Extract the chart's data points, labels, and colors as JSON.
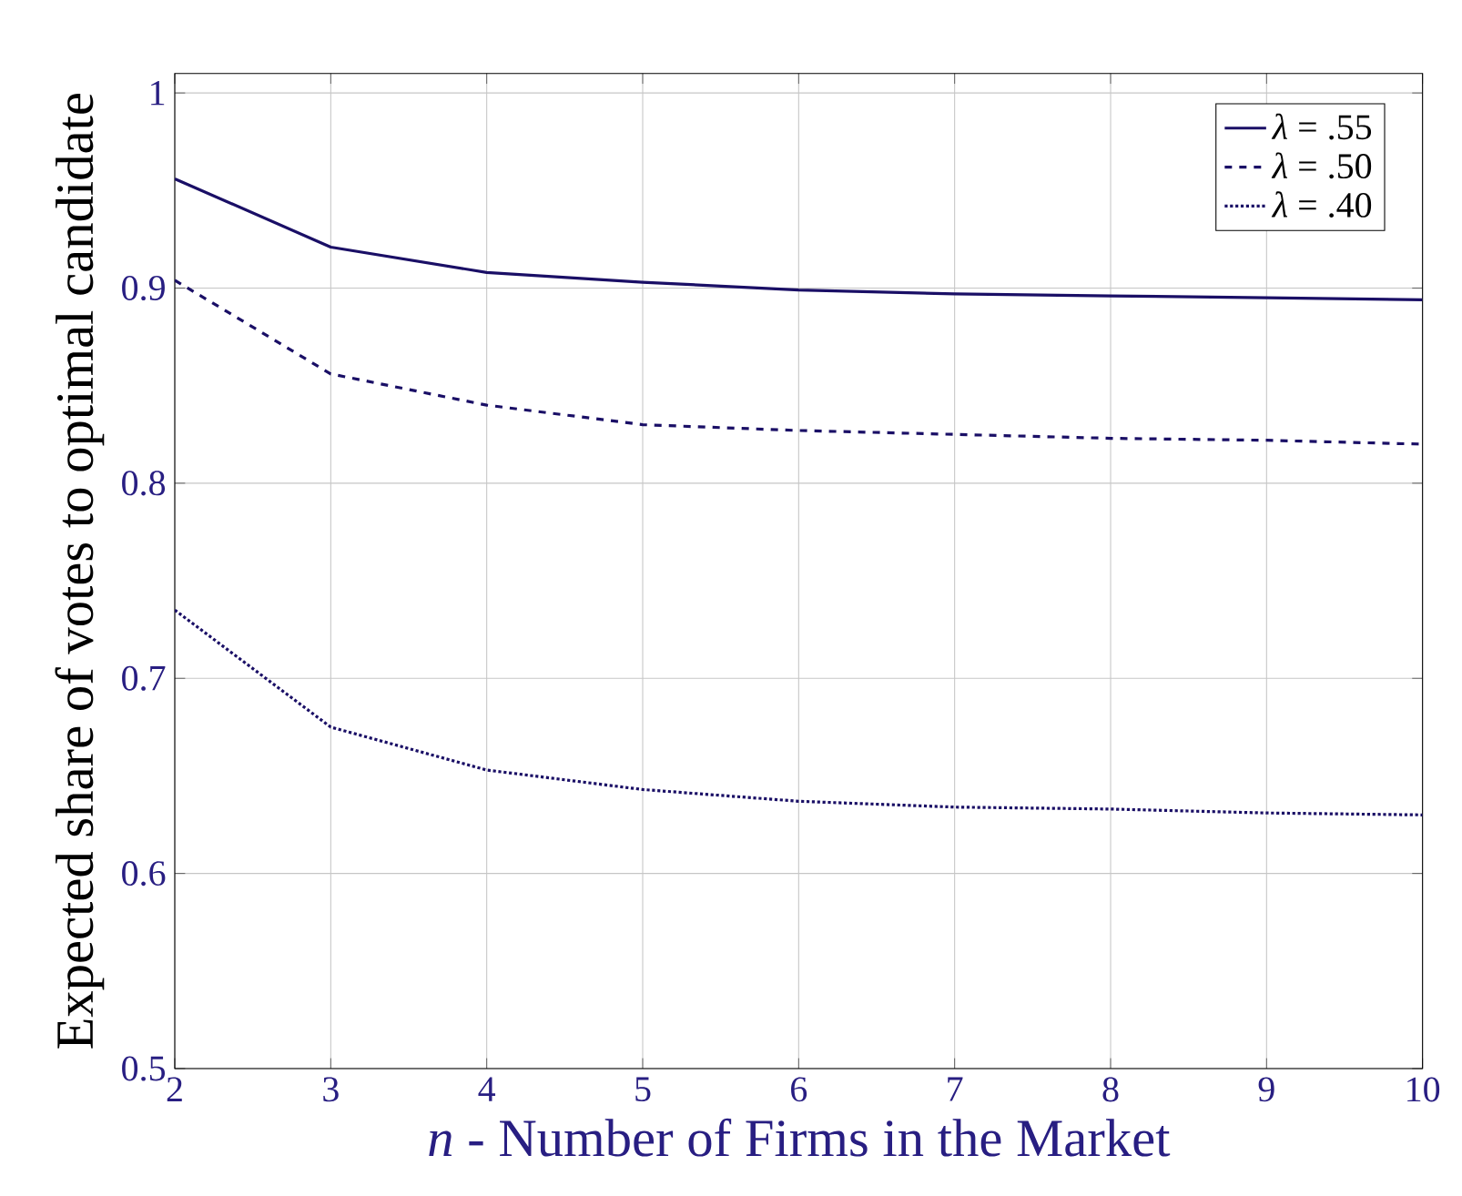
{
  "chart_data": {
    "type": "line",
    "xlabel": "*n* - Number of Firms in the Market",
    "ylabel": "Expected share of votes to optimal candidate",
    "x": [
      2,
      3,
      4,
      5,
      6,
      7,
      8,
      9,
      10
    ],
    "series": [
      {
        "name": "*λ* = .55",
        "color": "#1a0f66",
        "line_style": "solid",
        "values": [
          0.956,
          0.921,
          0.908,
          0.903,
          0.899,
          0.897,
          0.896,
          0.895,
          0.894
        ]
      },
      {
        "name": "*λ* = .50",
        "color": "#1a0f66",
        "line_style": "dashed",
        "values": [
          0.904,
          0.856,
          0.84,
          0.83,
          0.827,
          0.825,
          0.823,
          0.822,
          0.82
        ]
      },
      {
        "name": "*λ* = .40",
        "color": "#1a0f66",
        "line_style": "dotted",
        "values": [
          0.735,
          0.675,
          0.653,
          0.643,
          0.637,
          0.634,
          0.633,
          0.631,
          0.63
        ]
      }
    ],
    "xlim": [
      2,
      10
    ],
    "ylim": [
      0.5,
      1.01
    ],
    "xticks": [
      2,
      3,
      4,
      5,
      6,
      7,
      8,
      9,
      10
    ],
    "yticks": [
      0.5,
      0.6,
      0.7,
      0.8,
      0.9,
      {
        "value": 1,
        "label": "1"
      }
    ],
    "grid": true,
    "legend": "top right",
    "marker": "none"
  }
}
